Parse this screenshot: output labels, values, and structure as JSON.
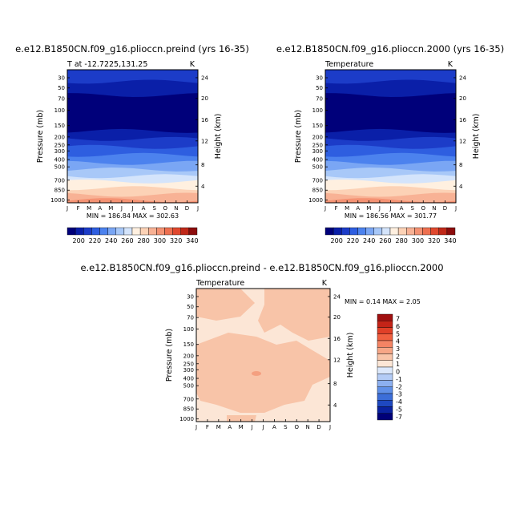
{
  "chart_data": [
    {
      "type": "heatmap",
      "title": "e.e12.B1850CN.f09_g16.plioccn.preind (yrs 16-35)",
      "left_label": "T at -12.7225,131.25",
      "right_label": "K",
      "ylabel": "Pressure (mb)",
      "ylabel_right": "Height (km)",
      "x_categories": [
        "J",
        "F",
        "M",
        "A",
        "M",
        "J",
        "J",
        "A",
        "S",
        "O",
        "N",
        "D",
        "J"
      ],
      "pressure_ticks": [
        "30",
        "50",
        "70",
        "100",
        "150",
        "200",
        "250",
        "300",
        "400",
        "500",
        "700",
        "850",
        "1000"
      ],
      "height_ticks": [
        "24",
        "20",
        "16",
        "12",
        "8",
        "4"
      ],
      "min_max_text": "MIN = 186.84  MAX = 302.63",
      "min": 186.84,
      "max": 302.63,
      "colorbar_labels": [
        "200",
        "220",
        "240",
        "260",
        "280",
        "300",
        "320",
        "340"
      ],
      "colorbar_colors": [
        "#00007a",
        "#0a1fa8",
        "#1c3cc8",
        "#2e5ee0",
        "#4c82ee",
        "#7aa6f4",
        "#a8c8f8",
        "#d4e4fb",
        "#fff0e0",
        "#fcd2b6",
        "#f8b295",
        "#f49273",
        "#ee7050",
        "#e0482e",
        "#c02818",
        "#8c0c0c"
      ]
    },
    {
      "type": "heatmap",
      "title": "e.e12.B1850CN.f09_g16.plioccn.2000 (yrs 16-35)",
      "left_label": "Temperature",
      "right_label": "K",
      "ylabel": "Pressure (mb)",
      "ylabel_right": "Height (km)",
      "x_categories": [
        "J",
        "F",
        "M",
        "A",
        "M",
        "J",
        "J",
        "A",
        "S",
        "O",
        "N",
        "D",
        "J"
      ],
      "pressure_ticks": [
        "30",
        "50",
        "70",
        "100",
        "150",
        "200",
        "250",
        "300",
        "400",
        "500",
        "700",
        "850",
        "1000"
      ],
      "height_ticks": [
        "24",
        "20",
        "16",
        "12",
        "8",
        "4"
      ],
      "min_max_text": "MIN = 186.56  MAX = 301.77",
      "min": 186.56,
      "max": 301.77,
      "colorbar_labels": [
        "200",
        "220",
        "240",
        "260",
        "280",
        "300",
        "320",
        "340"
      ],
      "colorbar_colors": [
        "#00007a",
        "#0a1fa8",
        "#1c3cc8",
        "#2e5ee0",
        "#4c82ee",
        "#7aa6f4",
        "#a8c8f8",
        "#d4e4fb",
        "#fff0e0",
        "#fcd2b6",
        "#f8b295",
        "#f49273",
        "#ee7050",
        "#e0482e",
        "#c02818",
        "#8c0c0c"
      ]
    },
    {
      "type": "heatmap",
      "title": "e.e12.B1850CN.f09_g16.plioccn.preind - e.e12.B1850CN.f09_g16.plioccn.2000",
      "left_label": "Temperature",
      "right_label": "K",
      "ylabel": "Pressure (mb)",
      "ylabel_right": "Height (km)",
      "x_categories": [
        "J",
        "F",
        "M",
        "A",
        "M",
        "J",
        "J",
        "A",
        "S",
        "O",
        "N",
        "D",
        "J"
      ],
      "pressure_ticks": [
        "30",
        "50",
        "70",
        "100",
        "150",
        "200",
        "250",
        "300",
        "400",
        "500",
        "700",
        "850",
        "1000"
      ],
      "height_ticks": [
        "24",
        "20",
        "16",
        "12",
        "8",
        "4"
      ],
      "min_max_text": "MIN =   0.14  MAX =    2.05",
      "min": 0.14,
      "max": 2.05,
      "colorbar_labels": [
        "7",
        "6",
        "5",
        "4",
        "3",
        "2",
        "1",
        "0",
        "-1",
        "-2",
        "-3",
        "-4",
        "-5",
        "-7"
      ],
      "colorbar_colors": [
        "#a01010",
        "#c42418",
        "#e04028",
        "#f06040",
        "#f48464",
        "#f6a686",
        "#f8c4a8",
        "#fce6d6",
        "#dce8fb",
        "#b4ccf6",
        "#8cb0f0",
        "#6090e8",
        "#3c6ed8",
        "#1e48c0",
        "#0a22a0",
        "#000078"
      ]
    }
  ]
}
